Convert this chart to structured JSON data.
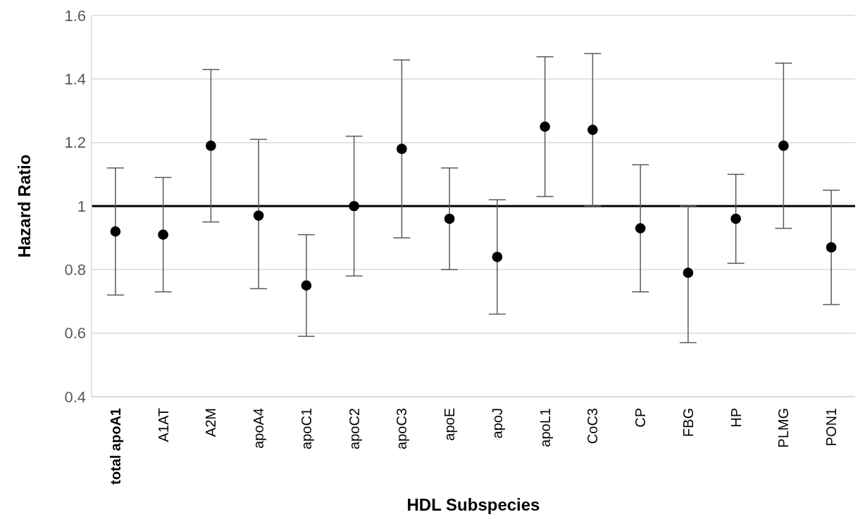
{
  "chart_data": {
    "type": "scatter",
    "xlabel": "HDL Subspecies",
    "ylabel": "Hazard Ratio",
    "categories": [
      "total apoA1",
      "A1AT",
      "A2M",
      "apoA4",
      "apoC1",
      "apoC2",
      "apoC3",
      "apoE",
      "apoJ",
      "apoL1",
      "CoC3",
      "CP",
      "FBG",
      "HP",
      "PLMG",
      "PON1"
    ],
    "series": [
      {
        "color": "#000000",
        "values": [
          0.92,
          0.91,
          1.19,
          0.97,
          0.75,
          1.0,
          1.18,
          0.96,
          0.84,
          1.25,
          1.24,
          0.93,
          0.79,
          0.96,
          1.19,
          0.87
        ],
        "errors": [
          [
            0.72,
            1.12
          ],
          [
            0.73,
            1.09
          ],
          [
            0.95,
            1.43
          ],
          [
            0.74,
            1.21
          ],
          [
            0.59,
            0.91
          ],
          [
            0.78,
            1.22
          ],
          [
            0.9,
            1.46
          ],
          [
            0.8,
            1.12
          ],
          [
            0.66,
            1.02
          ],
          [
            1.03,
            1.47
          ],
          [
            1.0,
            1.48
          ],
          [
            0.73,
            1.13
          ],
          [
            0.57,
            1.0
          ],
          [
            0.82,
            1.1
          ],
          [
            0.93,
            1.45
          ],
          [
            0.69,
            1.05
          ]
        ]
      }
    ],
    "ylim": [
      0.4,
      1.6
    ],
    "yticks": [
      0.4,
      0.6,
      0.8,
      1,
      1.2,
      1.4,
      1.6
    ],
    "grid": "y",
    "marker": "circle",
    "legend": false,
    "ref_lines": [
      {
        "axis": "y",
        "value": 1,
        "color": "#000000"
      }
    ]
  }
}
